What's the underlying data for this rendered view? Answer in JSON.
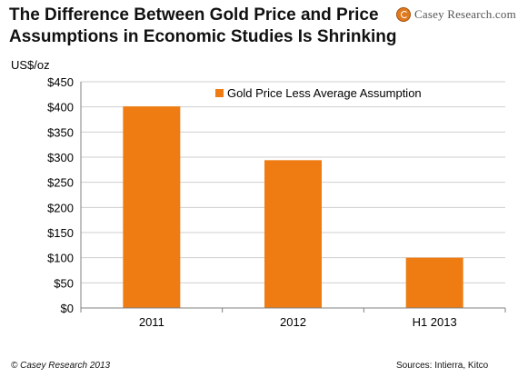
{
  "title_line1": "The Difference Between Gold Price and Price",
  "title_line2": "Assumptions in Economic Studies Is Shrinking",
  "logo": "Casey Research.com",
  "footer_left": "© Casey Research 2013",
  "footer_right": "Sources: Intierra, Kitco",
  "colors": {
    "bar": "#ef7c12",
    "grid": "#cfcfcf",
    "axis": "#808080"
  },
  "chart_data": {
    "type": "bar",
    "categories": [
      "2011",
      "2012",
      "H1 2013"
    ],
    "series": [
      {
        "name": "Gold Price Less Average Assumption",
        "values": [
          401,
          294,
          100
        ]
      }
    ],
    "ylabel": "US$/oz",
    "xlabel": "",
    "ylim": [
      0,
      450
    ],
    "yticks": [
      "$0",
      "$50",
      "$100",
      "$150",
      "$200",
      "$250",
      "$300",
      "$350",
      "$400",
      "$450"
    ],
    "ytick_values": [
      0,
      50,
      100,
      150,
      200,
      250,
      300,
      350,
      400,
      450
    ],
    "grid": true,
    "legend_position": "top-right"
  }
}
